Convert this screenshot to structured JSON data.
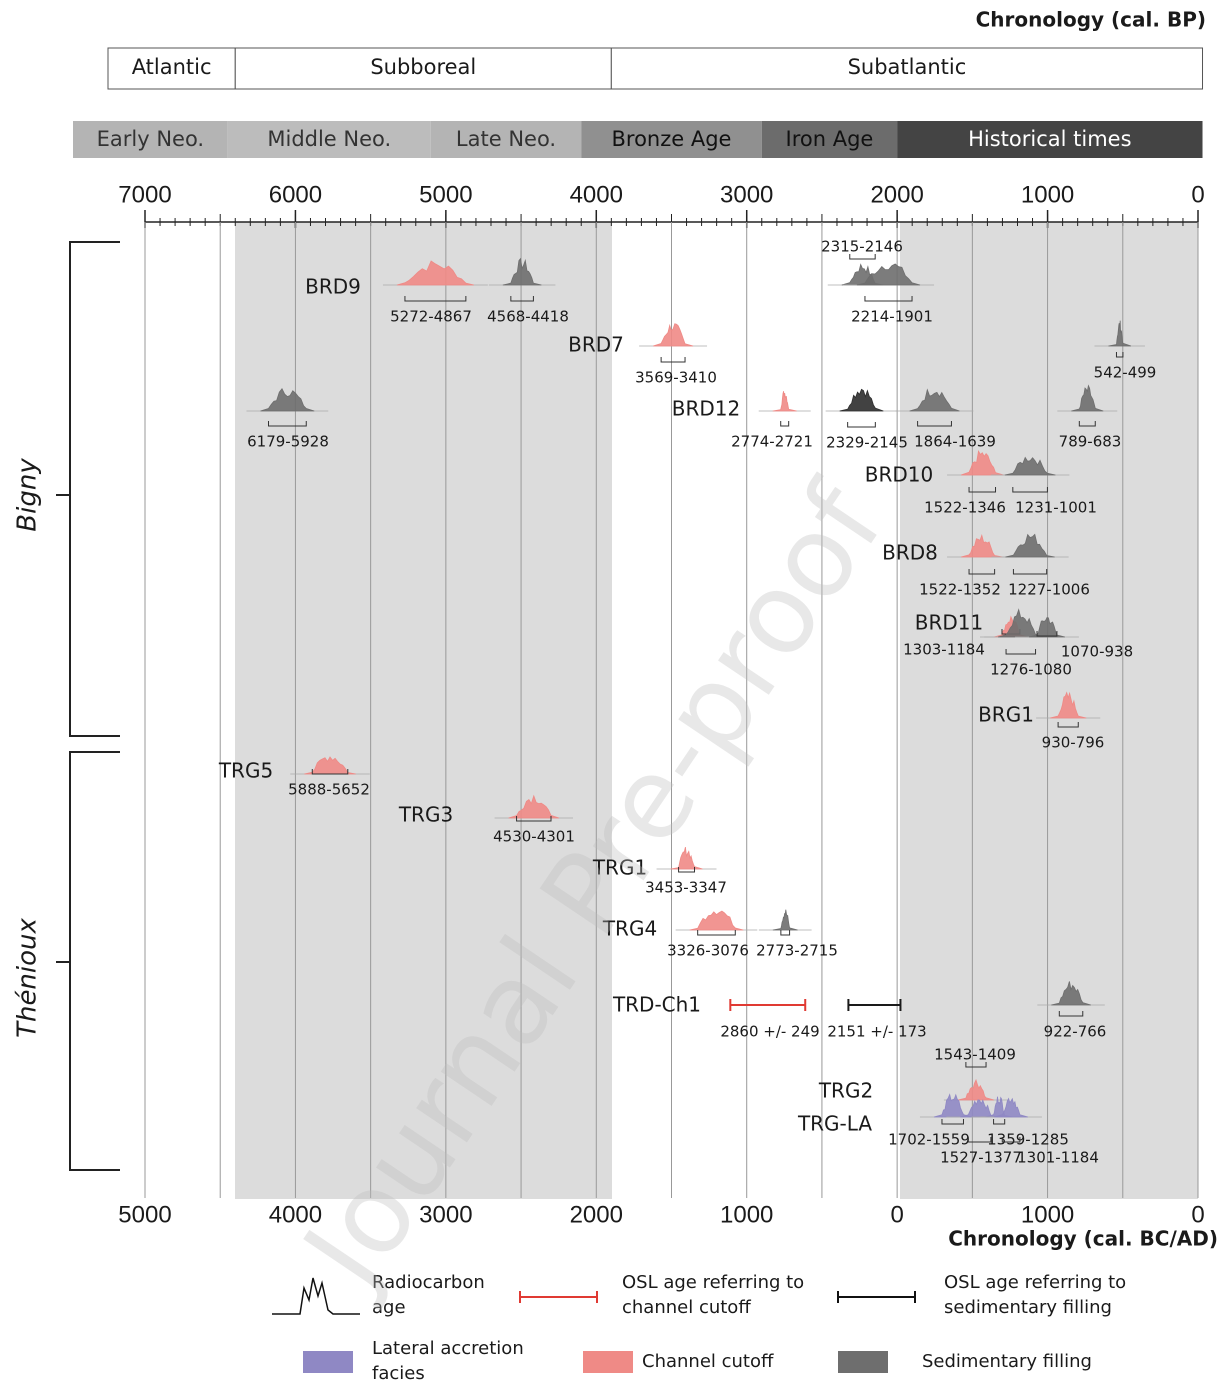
{
  "header": {
    "bp_title": "Chronology (cal. BP)",
    "bcad_title": "Chronology (cal. BC/AD)",
    "watermark": "Journal Pre-proof"
  },
  "climate": [
    {
      "label": "Atlantic",
      "from": -5250,
      "to": -4400
    },
    {
      "label": "Subboreal",
      "from": -4400,
      "to": -1900
    },
    {
      "label": "Subatlantic",
      "from": -1900,
      "to": 2030
    }
  ],
  "cultures": [
    {
      "label": "Early Neo.",
      "from": -5480,
      "to": -4450,
      "color": "#b4b4b4"
    },
    {
      "label": "Middle Neo.",
      "from": -4450,
      "to": -3100,
      "color": "#bcbcbc"
    },
    {
      "label": "Late Neo.",
      "from": -3100,
      "to": -2100,
      "color": "#b4b4b4"
    },
    {
      "label": "Bronze Age",
      "from": -2100,
      "to": -900,
      "color": "#909090"
    },
    {
      "label": "Iron Age",
      "from": -900,
      "to": 0,
      "color": "#6c6c6c"
    },
    {
      "label": "Historical times",
      "from": 0,
      "to": 2030,
      "color": "#444444"
    }
  ],
  "bp_axis": {
    "lim": [
      7000,
      0
    ],
    "ticks": [
      7000,
      6000,
      5000,
      4000,
      3000,
      2000,
      1000,
      0
    ]
  },
  "bcad_axis": {
    "ticks": [
      {
        "value": -5000,
        "label": "5000"
      },
      {
        "value": -4000,
        "label": "4000"
      },
      {
        "value": -3000,
        "label": "3000"
      },
      {
        "value": -2000,
        "label": "2000"
      },
      {
        "value": -1000,
        "label": "1000"
      },
      0,
      1000,
      {
        "value": 2000,
        "label": "0"
      }
    ]
  },
  "sites": [
    "Bigny",
    "Thénioux"
  ],
  "samples": [
    {
      "name": "BRD9",
      "ranges": [
        {
          "start": 5272,
          "end": 4867,
          "label": "5272-4867",
          "color": "#ef8a86"
        },
        {
          "start": 4568,
          "end": 4418,
          "label": "4568-4418",
          "color": "#6e6e6e"
        },
        {
          "start": 2315,
          "end": 2146,
          "label": "2315-2146",
          "color": "#6e6e6e"
        },
        {
          "start": 2214,
          "end": 1901,
          "label": "2214-1901",
          "color": "#6e6e6e"
        }
      ]
    },
    {
      "name": "BRD7",
      "ranges": [
        {
          "start": 3569,
          "end": 3410,
          "label": "3569-3410",
          "color": "#ef8a86"
        },
        {
          "start": 542,
          "end": 499,
          "label": "542-499",
          "color": "#6e6e6e"
        }
      ]
    },
    {
      "name": "BRD12",
      "ranges": [
        {
          "start": 6179,
          "end": 5928,
          "label": "6179-5928",
          "color": "#6e6e6e"
        },
        {
          "start": 2774,
          "end": 2721,
          "label": "2774-2721",
          "color": "#ef8a86"
        },
        {
          "start": 2329,
          "end": 2145,
          "label": "2329-2145",
          "color": "#2e2e2e"
        },
        {
          "start": 1864,
          "end": 1639,
          "label": "1864-1639",
          "color": "#6e6e6e"
        },
        {
          "start": 789,
          "end": 683,
          "label": "789-683",
          "color": "#6e6e6e"
        }
      ]
    },
    {
      "name": "BRD10",
      "ranges": [
        {
          "start": 1522,
          "end": 1346,
          "label": "1522-1346",
          "color": "#ef8a86"
        },
        {
          "start": 1231,
          "end": 1001,
          "label": "1231-1001",
          "color": "#6e6e6e"
        }
      ]
    },
    {
      "name": "BRD8",
      "ranges": [
        {
          "start": 1522,
          "end": 1352,
          "label": "1522-1352",
          "color": "#ef8a86"
        },
        {
          "start": 1227,
          "end": 1006,
          "label": "1227-1006",
          "color": "#6e6e6e"
        }
      ]
    },
    {
      "name": "BRD11",
      "ranges": [
        {
          "start": 1303,
          "end": 1184,
          "label": "1303-1184",
          "color": "#ef8a86"
        },
        {
          "start": 1276,
          "end": 1080,
          "label": "1276-1080",
          "color": "#6e6e6e"
        },
        {
          "start": 1070,
          "end": 938,
          "label": "1070-938",
          "color": "#6e6e6e"
        }
      ]
    },
    {
      "name": "BRG1",
      "ranges": [
        {
          "start": 930,
          "end": 796,
          "label": "930-796",
          "color": "#ef8a86"
        }
      ]
    },
    {
      "name": "TRG5",
      "ranges": [
        {
          "start": 5888,
          "end": 5652,
          "label": "5888-5652",
          "color": "#ef8a86"
        }
      ]
    },
    {
      "name": "TRG3",
      "ranges": [
        {
          "start": 4530,
          "end": 4301,
          "label": "4530-4301",
          "color": "#ef8a86"
        }
      ]
    },
    {
      "name": "TRG1",
      "ranges": [
        {
          "start": 3453,
          "end": 3347,
          "label": "3453-3347",
          "color": "#ef8a86"
        }
      ]
    },
    {
      "name": "TRG4",
      "ranges": [
        {
          "start": 3326,
          "end": 3076,
          "label": "3326-3076",
          "color": "#ef8a86"
        },
        {
          "start": 2773,
          "end": 2715,
          "label": "2773-2715",
          "color": "#6e6e6e"
        }
      ]
    },
    {
      "name": "TRD-Ch1",
      "osl": [
        {
          "value": 2860,
          "error": 249,
          "label": "2860 +/- 249",
          "color": "#e03a33"
        },
        {
          "value": 2151,
          "error": 173,
          "label": "2151 +/- 173",
          "color": "#1a1a1a"
        }
      ],
      "ranges": [
        {
          "start": 922,
          "end": 766,
          "label": "922-766",
          "color": "#6e6e6e"
        }
      ]
    },
    {
      "name": "TRG2",
      "ranges": [
        {
          "start": 1543,
          "end": 1409,
          "label": "1543-1409",
          "color": "#ef8a86"
        }
      ]
    },
    {
      "name": "TRG-LA",
      "ranges": [
        {
          "start": 1702,
          "end": 1559,
          "label": "1702-1559",
          "color": "#8f88c4"
        },
        {
          "start": 1527,
          "end": 1377,
          "label": "1527-1377",
          "color": "#8f88c4"
        },
        {
          "start": 1359,
          "end": 1285,
          "label": "1359-1285",
          "color": "#8f88c4"
        },
        {
          "start": 1301,
          "end": 1184,
          "label": "1301-1184",
          "color": "#8f88c4"
        }
      ]
    }
  ],
  "legend": [
    [
      "Radiocarbon",
      "age"
    ],
    [
      "OSL age referring to",
      "channel cutoff"
    ],
    [
      "OSL age referring to",
      "sedimentary filling"
    ],
    [
      "Lateral accretion",
      "facies"
    ],
    [
      "Channel cutoff"
    ],
    [
      "Sedimentary filling"
    ]
  ]
}
